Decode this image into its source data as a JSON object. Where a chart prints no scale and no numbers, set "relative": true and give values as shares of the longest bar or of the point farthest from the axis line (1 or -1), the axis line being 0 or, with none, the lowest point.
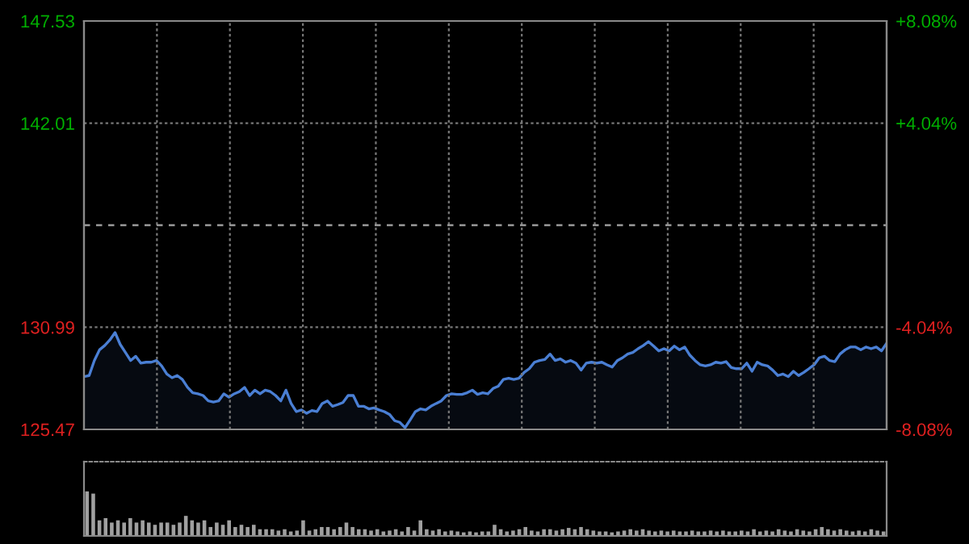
{
  "chart_data": [
    {
      "type": "area",
      "categories": [
        null,
        null,
        null,
        null,
        null,
        null,
        null,
        null,
        null,
        null,
        null,
        null,
        null,
        null,
        null,
        null,
        null,
        null,
        null,
        null,
        null,
        null,
        null,
        null,
        null,
        null,
        null,
        null,
        null,
        null,
        null,
        null,
        null,
        null,
        null,
        null,
        null,
        null,
        null,
        null,
        null,
        null,
        null,
        null,
        null,
        null,
        null,
        null,
        null,
        null,
        null,
        null,
        null,
        null,
        null,
        null,
        null,
        null,
        null,
        null,
        null,
        null,
        null,
        null,
        null,
        null,
        null,
        null,
        null,
        null,
        null,
        null,
        null,
        null,
        null,
        null,
        null,
        null,
        null,
        null,
        null,
        null,
        null,
        null,
        null,
        null,
        null,
        null,
        null,
        null,
        null,
        null,
        null,
        null,
        null,
        null,
        null,
        null,
        null,
        null,
        null,
        null,
        null,
        null,
        null,
        null,
        null,
        null,
        null,
        null,
        null,
        null,
        null,
        null,
        null,
        null,
        null,
        null,
        null,
        null,
        null,
        null,
        null,
        null,
        null,
        null,
        null,
        null,
        null,
        null,
        null,
        null,
        null,
        null,
        null,
        null,
        null,
        null,
        null,
        null,
        null,
        null,
        null,
        null,
        null,
        null,
        null,
        null,
        null,
        null,
        null,
        null,
        null,
        null,
        null,
        null
      ],
      "ylim": [
        125.47,
        147.53
      ],
      "yticks": [
        125.47,
        130.99,
        142.01,
        147.53
      ],
      "y2lim": [
        -8.08,
        8.08
      ],
      "y2ticks": [
        {
          "value": -8.08,
          "label": "-8.08%"
        },
        {
          "value": -4.04,
          "label": "-4.04%"
        },
        {
          "value": 4.04,
          "label": "+4.04%"
        },
        {
          "value": 8.08,
          "label": "+8.08%"
        }
      ],
      "ref_lines": [
        {
          "axis": "y",
          "value": 136.5,
          "line_style": "dashed",
          "color": "#9a9a9a"
        }
      ],
      "grid": true,
      "tick_labels": "y",
      "series": [
        {
          "color": "#4a7fd4",
          "values": [
            128.32,
            128.38,
            129.19,
            129.77,
            130.0,
            130.3,
            130.7,
            130.06,
            129.63,
            129.19,
            129.42,
            129.05,
            129.1,
            129.1,
            129.19,
            128.9,
            128.46,
            128.26,
            128.38,
            128.17,
            127.74,
            127.45,
            127.39,
            127.3,
            127.01,
            126.95,
            127.01,
            127.39,
            127.21,
            127.39,
            127.51,
            127.74,
            127.3,
            127.59,
            127.39,
            127.59,
            127.51,
            127.3,
            127.01,
            127.59,
            126.87,
            126.43,
            126.52,
            126.34,
            126.49,
            126.43,
            126.87,
            127.01,
            126.72,
            126.81,
            126.92,
            127.3,
            127.3,
            126.72,
            126.72,
            126.58,
            126.63,
            126.52,
            126.43,
            126.28,
            125.94,
            125.85,
            125.56,
            125.99,
            126.43,
            126.58,
            126.52,
            126.72,
            126.87,
            127.01,
            127.3,
            127.39,
            127.36,
            127.36,
            127.45,
            127.59,
            127.36,
            127.45,
            127.39,
            127.68,
            127.8,
            128.17,
            128.23,
            128.17,
            128.23,
            128.55,
            128.75,
            129.1,
            129.19,
            129.25,
            129.54,
            129.19,
            129.28,
            129.1,
            129.19,
            129.05,
            128.67,
            129.05,
            129.1,
            129.05,
            129.1,
            128.96,
            128.84,
            129.19,
            129.34,
            129.54,
            129.63,
            129.83,
            130.0,
            130.21,
            129.97,
            129.71,
            129.83,
            129.71,
            129.97,
            129.77,
            129.92,
            129.48,
            129.19,
            128.96,
            128.9,
            128.96,
            129.1,
            129.05,
            129.13,
            128.81,
            128.75,
            128.75,
            129.05,
            128.61,
            129.1,
            128.96,
            128.9,
            128.67,
            128.38,
            128.46,
            128.32,
            128.61,
            128.38,
            128.55,
            128.75,
            128.96,
            129.34,
            129.42,
            129.19,
            129.13,
            129.54,
            129.77,
            129.92,
            129.92,
            129.77,
            129.92,
            129.83,
            129.92,
            129.71,
            130.12
          ]
        }
      ]
    },
    {
      "type": "bar",
      "relative": true,
      "color": "#a0a0a0",
      "categories": [
        null,
        null,
        null,
        null,
        null,
        null,
        null,
        null,
        null,
        null,
        null,
        null,
        null,
        null,
        null,
        null,
        null,
        null,
        null,
        null,
        null,
        null,
        null,
        null,
        null,
        null,
        null,
        null,
        null,
        null,
        null,
        null,
        null,
        null,
        null,
        null,
        null,
        null,
        null,
        null,
        null,
        null,
        null,
        null,
        null,
        null,
        null,
        null,
        null,
        null,
        null,
        null,
        null,
        null,
        null,
        null,
        null,
        null,
        null,
        null,
        null,
        null,
        null,
        null,
        null,
        null,
        null,
        null,
        null,
        null,
        null,
        null,
        null,
        null,
        null,
        null,
        null,
        null,
        null,
        null,
        null,
        null,
        null,
        null,
        null,
        null,
        null,
        null,
        null,
        null,
        null,
        null,
        null,
        null,
        null,
        null,
        null,
        null,
        null,
        null,
        null,
        null,
        null,
        null,
        null,
        null,
        null,
        null,
        null,
        null,
        null,
        null,
        null,
        null,
        null,
        null,
        null,
        null,
        null,
        null,
        null,
        null,
        null,
        null,
        null,
        null,
        null,
        null,
        null,
        null
      ],
      "values": [
        1.0,
        0.95,
        0.35,
        0.4,
        0.3,
        0.35,
        0.3,
        0.4,
        0.3,
        0.35,
        0.3,
        0.25,
        0.3,
        0.3,
        0.25,
        0.3,
        0.45,
        0.35,
        0.3,
        0.35,
        0.2,
        0.3,
        0.25,
        0.35,
        0.2,
        0.25,
        0.2,
        0.25,
        0.15,
        0.15,
        0.15,
        0.12,
        0.15,
        0.1,
        0.12,
        0.35,
        0.12,
        0.15,
        0.2,
        0.2,
        0.15,
        0.2,
        0.3,
        0.2,
        0.15,
        0.15,
        0.12,
        0.15,
        0.1,
        0.12,
        0.15,
        0.1,
        0.2,
        0.12,
        0.35,
        0.15,
        0.12,
        0.15,
        0.1,
        0.12,
        0.1,
        0.08,
        0.1,
        0.08,
        0.1,
        0.1,
        0.25,
        0.15,
        0.1,
        0.12,
        0.15,
        0.2,
        0.12,
        0.1,
        0.15,
        0.15,
        0.12,
        0.15,
        0.18,
        0.15,
        0.2,
        0.15,
        0.12,
        0.1,
        0.1,
        0.08,
        0.1,
        0.12,
        0.15,
        0.12,
        0.15,
        0.12,
        0.1,
        0.12,
        0.1,
        0.12,
        0.1,
        0.1,
        0.12,
        0.1,
        0.1,
        0.12,
        0.1,
        0.12,
        0.1,
        0.1,
        0.12,
        0.1,
        0.15,
        0.1,
        0.12,
        0.1,
        0.15,
        0.12,
        0.1,
        0.15,
        0.12,
        0.1,
        0.15,
        0.2,
        0.15,
        0.12,
        0.15,
        0.12,
        0.1,
        0.12,
        0.1,
        0.15,
        0.12,
        0.1
      ]
    }
  ]
}
